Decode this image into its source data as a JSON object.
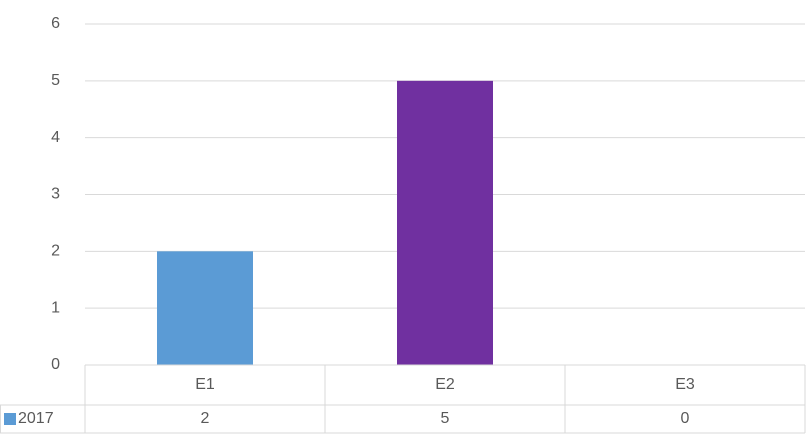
{
  "chart_data": {
    "type": "bar",
    "categories": [
      "E1",
      "E2",
      "E3"
    ],
    "series": [
      {
        "name": "2017",
        "color": "#5b9bd5",
        "point_colors": [
          "#5b9bd5",
          "#7030a0",
          "#5b9bd5"
        ],
        "values": [
          2,
          5,
          0
        ]
      }
    ],
    "ylim": [
      0,
      6
    ],
    "yticks": [
      0,
      1,
      2,
      3,
      4,
      5,
      6
    ],
    "grid": true,
    "data_table": true
  }
}
